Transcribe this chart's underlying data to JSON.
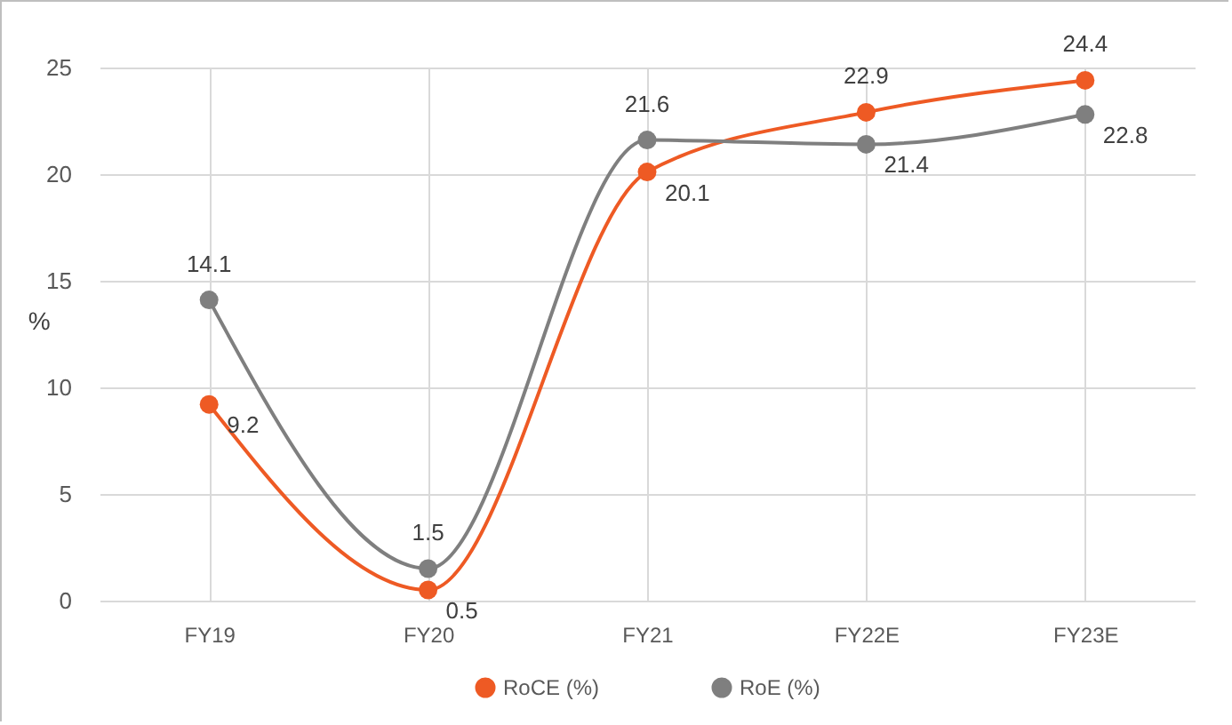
{
  "chart_data": {
    "type": "line",
    "ylabel": "%",
    "categories": [
      "FY19",
      "FY20",
      "FY21",
      "FY22E",
      "FY23E"
    ],
    "series": [
      {
        "name": "RoCE (%)",
        "color": "#ee5a24",
        "values": [
          9.2,
          0.5,
          20.1,
          22.9,
          24.4
        ]
      },
      {
        "name": "RoE (%)",
        "color": "#7f7f7f",
        "values": [
          14.1,
          1.5,
          21.6,
          21.4,
          22.8
        ]
      }
    ],
    "ylim": [
      0,
      25
    ],
    "yticks": [
      0,
      5,
      10,
      15,
      20,
      25
    ],
    "grid": true,
    "legend": "bottom",
    "marker": "circle",
    "line_style": "solid",
    "data_labels": true
  }
}
